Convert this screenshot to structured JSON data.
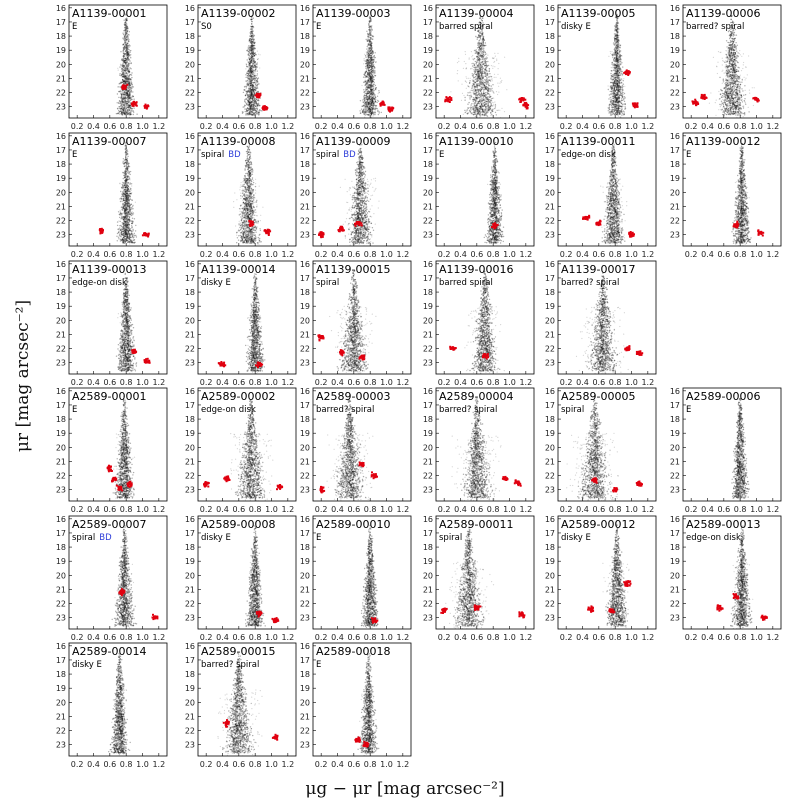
{
  "figure": {
    "ylabel": "μr [mag arcsec⁻²]",
    "xlabel": "μg − μr [mag arcsec⁻²]",
    "colors": {
      "points": "#111111",
      "outliers": "#e0000f",
      "bd_label": "#2a3ad8",
      "frame": "#000000"
    }
  },
  "chart_data": {
    "type": "scatter",
    "xlabel": "μg − μr [mag arcsec⁻²]",
    "ylabel": "μr [mag arcsec⁻²]",
    "xlim": [
      0.1,
      1.3
    ],
    "ylim": [
      23.8,
      15.8
    ],
    "y_axis_inverted": true,
    "xticks": [
      "0.2",
      "0.4",
      "0.6",
      "0.8",
      "1.0",
      "1.2"
    ],
    "yticks": [
      "16",
      "17",
      "18",
      "19",
      "20",
      "21",
      "22",
      "23"
    ],
    "panels": [
      {
        "id": "A1139-00001",
        "label": "E",
        "bd": "",
        "color": 0.8,
        "spread": 0.35,
        "red": [
          [
            0.9,
            22.8
          ],
          [
            1.05,
            23.0
          ],
          [
            0.78,
            21.6
          ]
        ],
        "row": 0,
        "col": 0
      },
      {
        "id": "A1139-00002",
        "label": "S0",
        "bd": "",
        "color": 0.76,
        "spread": 0.35,
        "red": [
          [
            0.84,
            22.2
          ],
          [
            0.92,
            23.1
          ]
        ],
        "row": 0,
        "col": 1
      },
      {
        "id": "A1139-00003",
        "label": "E",
        "bd": "",
        "color": 0.8,
        "spread": 0.35,
        "red": [
          [
            0.95,
            22.8
          ],
          [
            1.05,
            23.2
          ]
        ],
        "row": 0,
        "col": 2
      },
      {
        "id": "A1139-00004",
        "label": "barred spiral",
        "bd": "",
        "color": 0.65,
        "spread": 1.1,
        "red": [
          [
            1.15,
            22.5
          ],
          [
            1.2,
            22.9
          ],
          [
            0.25,
            22.5
          ]
        ],
        "row": 0,
        "col": 3
      },
      {
        "id": "A1139-00005",
        "label": "disky E",
        "bd": "",
        "color": 0.82,
        "spread": 0.35,
        "red": [
          [
            0.95,
            20.6
          ],
          [
            1.05,
            22.9
          ]
        ],
        "row": 0,
        "col": 4
      },
      {
        "id": "A1139-00006",
        "label": "barred? spiral",
        "bd": "",
        "color": 0.7,
        "spread": 0.9,
        "red": [
          [
            1.0,
            22.5
          ],
          [
            0.35,
            22.3
          ],
          [
            0.25,
            22.7
          ]
        ],
        "row": 0,
        "col": 5
      },
      {
        "id": "A1139-00007",
        "label": "E",
        "bd": "",
        "color": 0.8,
        "spread": 0.35,
        "red": [
          [
            0.5,
            22.7
          ],
          [
            1.05,
            23.0
          ]
        ],
        "row": 1,
        "col": 0
      },
      {
        "id": "A1139-00008",
        "label": "spiral",
        "bd": "BD",
        "color": 0.72,
        "spread": 0.6,
        "red": [
          [
            0.75,
            22.2
          ],
          [
            0.95,
            22.8
          ]
        ],
        "row": 1,
        "col": 1
      },
      {
        "id": "A1139-00009",
        "label": "spiral",
        "bd": "BD",
        "color": 0.68,
        "spread": 0.8,
        "red": [
          [
            0.2,
            23.0
          ],
          [
            0.45,
            22.6
          ],
          [
            0.65,
            22.2
          ]
        ],
        "row": 1,
        "col": 2
      },
      {
        "id": "A1139-00010",
        "label": "E",
        "bd": "",
        "color": 0.82,
        "spread": 0.3,
        "red": [
          [
            0.82,
            22.4
          ]
        ],
        "row": 1,
        "col": 3
      },
      {
        "id": "A1139-00011",
        "label": "edge-on disk",
        "bd": "",
        "color": 0.78,
        "spread": 0.6,
        "red": [
          [
            0.45,
            21.8
          ],
          [
            0.6,
            22.2
          ],
          [
            1.0,
            23.0
          ]
        ],
        "row": 1,
        "col": 4
      },
      {
        "id": "A1139-00012",
        "label": "E",
        "bd": "",
        "color": 0.82,
        "spread": 0.35,
        "red": [
          [
            0.75,
            22.3
          ],
          [
            1.05,
            22.9
          ]
        ],
        "row": 1,
        "col": 5
      },
      {
        "id": "A1139-00013",
        "label": "edge-on disk",
        "bd": "",
        "color": 0.8,
        "spread": 0.4,
        "red": [
          [
            0.9,
            22.2
          ],
          [
            1.05,
            22.9
          ]
        ],
        "row": 2,
        "col": 0
      },
      {
        "id": "A1139-00014",
        "label": "disky E",
        "bd": "",
        "color": 0.8,
        "spread": 0.35,
        "red": [
          [
            0.4,
            23.1
          ],
          [
            0.85,
            23.1
          ]
        ],
        "row": 2,
        "col": 1
      },
      {
        "id": "A1139-00015",
        "label": "spiral",
        "bd": "",
        "color": 0.6,
        "spread": 0.9,
        "red": [
          [
            0.2,
            21.2
          ],
          [
            0.45,
            22.3
          ],
          [
            0.7,
            22.6
          ]
        ],
        "row": 2,
        "col": 2
      },
      {
        "id": "A1139-00016",
        "label": "barred spiral",
        "bd": "",
        "color": 0.7,
        "spread": 0.8,
        "red": [
          [
            0.3,
            22.0
          ],
          [
            0.7,
            22.5
          ]
        ],
        "row": 2,
        "col": 3
      },
      {
        "id": "A1139-00017",
        "label": "barred? spiral",
        "bd": "",
        "color": 0.65,
        "spread": 1.0,
        "red": [
          [
            0.95,
            22.0
          ],
          [
            1.1,
            22.3
          ]
        ],
        "row": 2,
        "col": 4
      },
      {
        "id": "A2589-00001",
        "label": "E",
        "bd": "",
        "color": 0.78,
        "spread": 0.45,
        "red": [
          [
            0.6,
            21.5
          ],
          [
            0.65,
            22.3
          ],
          [
            0.72,
            22.9
          ],
          [
            0.85,
            22.6
          ]
        ],
        "row": 3,
        "col": 0
      },
      {
        "id": "A2589-00002",
        "label": "edge-on disk",
        "bd": "",
        "color": 0.75,
        "spread": 1.0,
        "red": [
          [
            0.2,
            22.6
          ],
          [
            0.45,
            22.2
          ],
          [
            1.1,
            22.8
          ]
        ],
        "row": 3,
        "col": 1
      },
      {
        "id": "A2589-00003",
        "label": "barred? spiral",
        "bd": "",
        "color": 0.55,
        "spread": 1.0,
        "red": [
          [
            0.7,
            21.2
          ],
          [
            0.85,
            22.0
          ],
          [
            0.2,
            23.0
          ]
        ],
        "row": 3,
        "col": 2
      },
      {
        "id": "A2589-00004",
        "label": "barred? spiral",
        "bd": "",
        "color": 0.6,
        "spread": 1.0,
        "red": [
          [
            0.95,
            22.2
          ],
          [
            1.1,
            22.5
          ]
        ],
        "row": 3,
        "col": 3
      },
      {
        "id": "A2589-00005",
        "label": "spiral",
        "bd": "",
        "color": 0.55,
        "spread": 1.1,
        "red": [
          [
            0.55,
            22.3
          ],
          [
            0.8,
            23.0
          ],
          [
            1.1,
            22.6
          ]
        ],
        "row": 3,
        "col": 4
      },
      {
        "id": "A2589-00006",
        "label": "E",
        "bd": "",
        "color": 0.8,
        "spread": 0.3,
        "red": [],
        "row": 3,
        "col": 5
      },
      {
        "id": "A2589-00007",
        "label": "spiral",
        "bd": "BD",
        "color": 0.78,
        "spread": 0.45,
        "red": [
          [
            0.75,
            21.2
          ],
          [
            1.15,
            23.0
          ]
        ],
        "row": 4,
        "col": 0
      },
      {
        "id": "A2589-00008",
        "label": "disky E",
        "bd": "",
        "color": 0.8,
        "spread": 0.35,
        "red": [
          [
            0.85,
            22.7
          ],
          [
            1.05,
            23.2
          ]
        ],
        "row": 4,
        "col": 1
      },
      {
        "id": "A2589-00010",
        "label": "E",
        "bd": "",
        "color": 0.8,
        "spread": 0.3,
        "red": [
          [
            0.85,
            23.2
          ]
        ],
        "row": 4,
        "col": 2
      },
      {
        "id": "A2589-00011",
        "label": "spiral",
        "bd": "",
        "color": 0.5,
        "spread": 1.0,
        "red": [
          [
            0.2,
            22.5
          ],
          [
            0.6,
            22.3
          ],
          [
            1.15,
            22.8
          ]
        ],
        "row": 4,
        "col": 3
      },
      {
        "id": "A2589-00012",
        "label": "disky E",
        "bd": "",
        "color": 0.82,
        "spread": 0.6,
        "red": [
          [
            0.95,
            20.6
          ],
          [
            0.5,
            22.4
          ],
          [
            0.75,
            22.5
          ]
        ],
        "row": 4,
        "col": 4
      },
      {
        "id": "A2589-00013",
        "label": "edge-on disk",
        "bd": "",
        "color": 0.82,
        "spread": 0.45,
        "red": [
          [
            0.75,
            21.5
          ],
          [
            0.55,
            22.3
          ],
          [
            1.1,
            23.0
          ]
        ],
        "row": 4,
        "col": 5
      },
      {
        "id": "A2589-00014",
        "label": "disky E",
        "bd": "",
        "color": 0.72,
        "spread": 0.35,
        "red": [],
        "row": 5,
        "col": 0
      },
      {
        "id": "A2589-00015",
        "label": "barred? spiral",
        "bd": "",
        "color": 0.6,
        "spread": 1.0,
        "red": [
          [
            0.45,
            21.5
          ],
          [
            1.05,
            22.5
          ]
        ],
        "row": 5,
        "col": 1
      },
      {
        "id": "A2589-00018",
        "label": "E",
        "bd": "",
        "color": 0.78,
        "spread": 0.35,
        "red": [
          [
            0.65,
            22.7
          ],
          [
            0.75,
            23.0
          ]
        ],
        "row": 5,
        "col": 2
      }
    ]
  }
}
